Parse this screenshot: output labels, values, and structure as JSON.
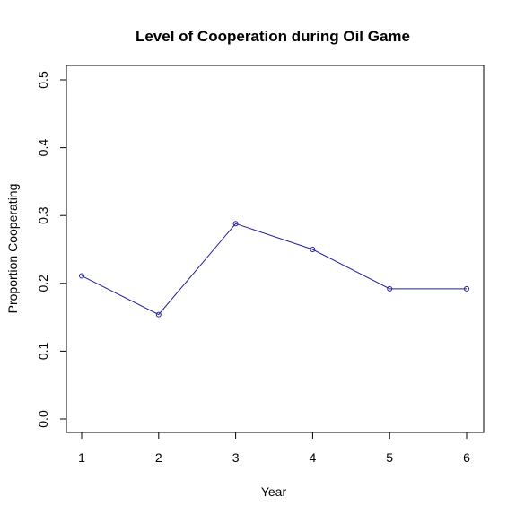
{
  "chart_data": {
    "type": "line",
    "title": "Level of Cooperation during Oil Game",
    "xlabel": "Year",
    "ylabel": "Proportion Cooperating",
    "x": [
      1,
      2,
      3,
      4,
      5,
      6
    ],
    "series": [
      {
        "values": [
          0.211,
          0.154,
          0.288,
          0.25,
          0.192,
          0.192
        ],
        "color": "#2020a0"
      }
    ],
    "xlim": [
      1,
      6
    ],
    "ylim": [
      0,
      0.5
    ],
    "xticks": [
      "1",
      "2",
      "3",
      "4",
      "5",
      "6"
    ],
    "yticks": [
      "0.0",
      "0.1",
      "0.2",
      "0.3",
      "0.4",
      "0.5"
    ],
    "grid": false
  }
}
